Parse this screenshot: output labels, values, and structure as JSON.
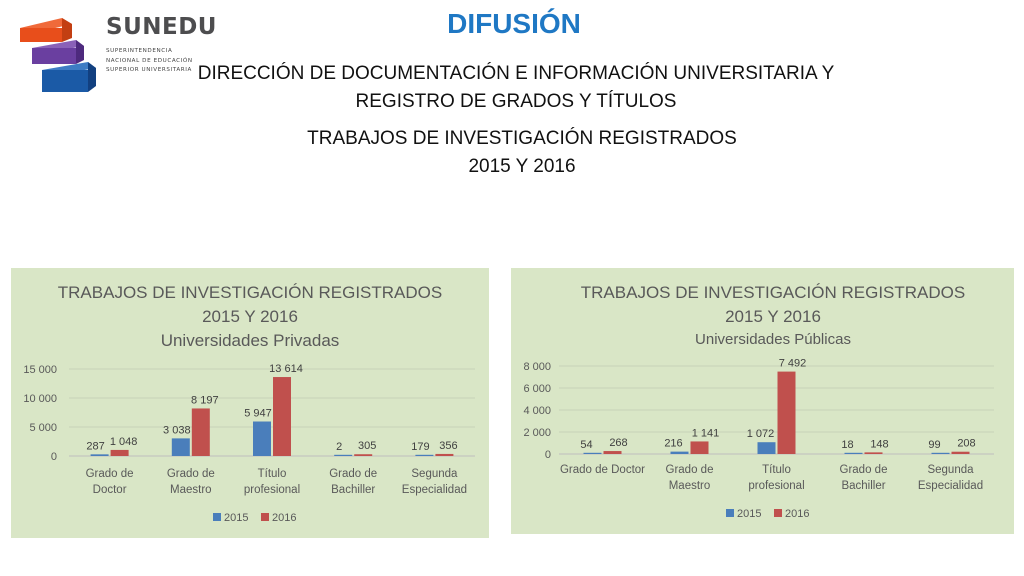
{
  "logo": {
    "name": "SUNEDU",
    "subtitle_lines": [
      "SUPERINTENDENCIA",
      "NACIONAL DE EDUCACIÓN",
      "SUPERIOR UNIVERSITARIA"
    ]
  },
  "header": {
    "title": "DIFUSIÓN",
    "subtitle_line1": "DIRECCIÓN DE DOCUMENTACIÓN E INFORMACIÓN UNIVERSITARIA Y",
    "subtitle_line2": "REGISTRO DE GRADOS Y TÍTULOS",
    "section_line1": "TRABAJOS DE INVESTIGACIÓN REGISTRADOS",
    "section_line2": "2015 Y 2016"
  },
  "colors": {
    "series_2015": "#4a7ebb",
    "series_2016": "#c0504d",
    "panel_bg": "#d9e6c6",
    "title_blue": "#1f78c4"
  },
  "chart_data": [
    {
      "type": "bar",
      "title": [
        "TRABAJOS DE INVESTIGACIÓN REGISTRADOS",
        "2015 Y 2016",
        "Universidades Privadas"
      ],
      "categories": [
        [
          "Grado de",
          "Doctor"
        ],
        [
          "Grado de",
          "Maestro"
        ],
        [
          "Título",
          "profesional"
        ],
        [
          "Grado de",
          "Bachiller"
        ],
        [
          "Segunda",
          "Especialidad"
        ]
      ],
      "series": [
        {
          "name": "2015",
          "values": [
            287,
            3038,
            5947,
            2,
            179
          ],
          "labels": [
            "287",
            "3 038",
            "5 947",
            "2",
            "179"
          ]
        },
        {
          "name": "2016",
          "values": [
            1048,
            8197,
            13614,
            305,
            356
          ],
          "labels": [
            "1 048",
            "8 197",
            "13 614",
            "305",
            "356"
          ]
        }
      ],
      "ylim": [
        0,
        15000
      ],
      "yticks": [
        0,
        5000,
        10000,
        15000
      ],
      "ytick_labels": [
        "0",
        "5 000",
        "10 000",
        "15 000"
      ],
      "grid": true,
      "legend": "bottom"
    },
    {
      "type": "bar",
      "title": [
        "TRABAJOS DE INVESTIGACIÓN REGISTRADOS",
        "2015 Y 2016",
        "Universidades Públicas"
      ],
      "categories": [
        [
          "Grado de Doctor"
        ],
        [
          "Grado de",
          "Maestro"
        ],
        [
          "Título",
          "profesional"
        ],
        [
          "Grado de",
          "Bachiller"
        ],
        [
          "Segunda",
          "Especialidad"
        ]
      ],
      "series": [
        {
          "name": "2015",
          "values": [
            54,
            216,
            1072,
            18,
            99
          ],
          "labels": [
            "54",
            "216",
            "1 072",
            "18",
            "99"
          ]
        },
        {
          "name": "2016",
          "values": [
            268,
            1141,
            7492,
            148,
            208
          ],
          "labels": [
            "268",
            "1 141",
            "7 492",
            "148",
            "208"
          ]
        }
      ],
      "ylim": [
        0,
        8000
      ],
      "yticks": [
        0,
        2000,
        4000,
        6000,
        8000
      ],
      "ytick_labels": [
        "0",
        "2 000",
        "4 000",
        "6 000",
        "8 000"
      ],
      "grid": true,
      "legend": "bottom"
    }
  ]
}
